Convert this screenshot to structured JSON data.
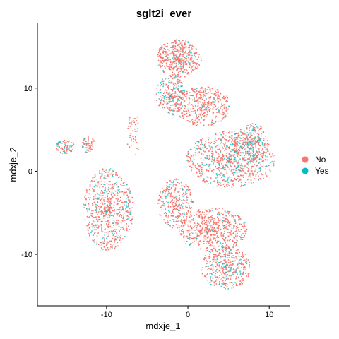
{
  "chart_data": {
    "type": "scatter",
    "title": "sglt2i_ever",
    "xlabel": "mdxje_1",
    "ylabel": "mdxje_2",
    "xlim": [
      -18.5,
      12.5
    ],
    "ylim": [
      -16.2,
      17.8
    ],
    "x_ticks": [
      -10,
      0,
      10
    ],
    "x_tick_labels": [
      "-10",
      "0",
      "10"
    ],
    "y_ticks": [
      -10,
      0,
      10
    ],
    "y_tick_labels": [
      "-10",
      "0",
      "10"
    ],
    "grid": false,
    "legend_position": "right",
    "series": [
      {
        "name": "No",
        "color": "#F8766D"
      },
      {
        "name": "Yes",
        "color": "#00BFC4"
      }
    ],
    "clusters": [
      {
        "cx": -1.2,
        "cy": 13.6,
        "rx": 2.8,
        "ry": 2.3,
        "weight": 9,
        "yes_fraction": 0.12
      },
      {
        "cx": -2.2,
        "cy": 9.2,
        "rx": 1.8,
        "ry": 2.4,
        "weight": 5,
        "yes_fraction": 0.3
      },
      {
        "cx": 1.8,
        "cy": 7.9,
        "rx": 3.4,
        "ry": 2.4,
        "weight": 8,
        "yes_fraction": 0.12
      },
      {
        "cx": 5.2,
        "cy": 1.5,
        "rx": 5.5,
        "ry": 3.4,
        "weight": 16,
        "yes_fraction": 0.28
      },
      {
        "cx": 7.6,
        "cy": 3.5,
        "rx": 2.2,
        "ry": 2.4,
        "weight": 5,
        "yes_fraction": 0.35
      },
      {
        "cx": -15.2,
        "cy": 3.0,
        "rx": 1.2,
        "ry": 0.8,
        "weight": 1.6,
        "yes_fraction": 0.25
      },
      {
        "cx": -12.3,
        "cy": 3.2,
        "rx": 0.8,
        "ry": 1.0,
        "weight": 1.2,
        "yes_fraction": 0.25
      },
      {
        "cx": -9.8,
        "cy": -4.5,
        "rx": 3.1,
        "ry": 5.0,
        "weight": 13,
        "yes_fraction": 0.22
      },
      {
        "cx": -1.6,
        "cy": -3.8,
        "rx": 2.2,
        "ry": 3.0,
        "weight": 6,
        "yes_fraction": 0.2
      },
      {
        "cx": 3.0,
        "cy": -7.0,
        "rx": 4.2,
        "ry": 2.7,
        "weight": 11,
        "yes_fraction": 0.08
      },
      {
        "cx": 4.6,
        "cy": -11.5,
        "rx": 3.1,
        "ry": 2.6,
        "weight": 8,
        "yes_fraction": 0.22
      },
      {
        "cx": -6.8,
        "cy": 4.5,
        "rx": 0.9,
        "ry": 2.7,
        "weight": 0.8,
        "yes_fraction": 0.1
      }
    ]
  }
}
